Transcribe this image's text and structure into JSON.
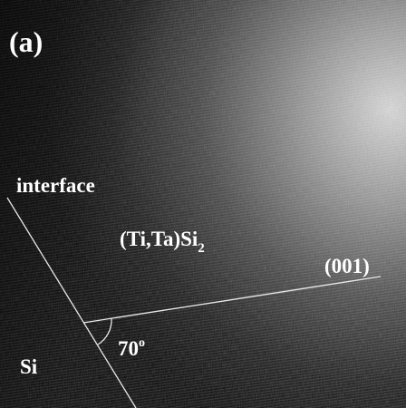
{
  "labels": {
    "panel": "(a)",
    "interface": "interface",
    "film": {
      "text": "(Ti,Ta)Si",
      "subscript": "2"
    },
    "plane": "(001)",
    "angle": {
      "text": "70",
      "superscript": "o"
    },
    "substrate": "Si"
  }
}
